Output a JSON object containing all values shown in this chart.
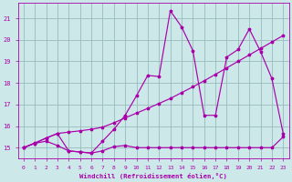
{
  "xlabel": "Windchill (Refroidissement éolien,°C)",
  "bg_color": "#cce8e8",
  "line_color": "#aa00aa",
  "grid_color": "#99bbbb",
  "xlim": [
    -0.5,
    23.5
  ],
  "ylim": [
    14.5,
    21.7
  ],
  "yticks": [
    15,
    16,
    17,
    18,
    19,
    20,
    21
  ],
  "xticks": [
    0,
    1,
    2,
    3,
    4,
    5,
    6,
    7,
    8,
    9,
    10,
    11,
    12,
    13,
    14,
    15,
    16,
    17,
    18,
    19,
    20,
    21,
    22,
    23
  ],
  "s1_x": [
    0,
    1,
    2,
    3,
    4,
    5,
    6,
    7,
    8,
    9,
    10,
    11,
    12,
    13,
    14,
    15,
    16,
    17,
    18,
    19,
    20,
    21,
    22,
    23
  ],
  "s1_y": [
    15.0,
    15.2,
    15.3,
    15.1,
    14.85,
    14.8,
    14.75,
    14.85,
    15.05,
    15.1,
    15.0,
    15.0,
    15.0,
    15.0,
    15.0,
    15.0,
    15.0,
    15.0,
    15.0,
    15.0,
    15.0,
    15.0,
    15.0,
    15.5
  ],
  "s2_x": [
    0,
    1,
    2,
    3,
    4,
    5,
    6,
    7,
    8,
    9,
    10,
    11,
    12,
    13,
    14,
    15,
    16,
    17,
    18,
    19,
    20,
    21,
    22,
    23
  ],
  "s2_y": [
    15.0,
    15.22,
    15.44,
    15.66,
    15.72,
    15.78,
    15.85,
    15.95,
    16.15,
    16.38,
    16.6,
    16.82,
    17.05,
    17.28,
    17.55,
    17.82,
    18.1,
    18.4,
    18.7,
    19.0,
    19.3,
    19.6,
    19.9,
    20.2
  ],
  "s3_x": [
    0,
    1,
    2,
    3,
    4,
    5,
    6,
    7,
    8,
    9,
    10,
    11,
    12,
    13,
    14,
    15,
    16,
    17,
    18,
    19,
    20,
    21,
    22,
    23
  ],
  "s3_y": [
    15.0,
    15.2,
    15.45,
    15.65,
    14.85,
    14.8,
    14.75,
    15.3,
    15.85,
    16.5,
    17.4,
    18.35,
    18.3,
    21.35,
    20.6,
    19.5,
    16.5,
    16.5,
    19.2,
    19.55,
    20.5,
    19.45,
    18.2,
    15.65
  ]
}
